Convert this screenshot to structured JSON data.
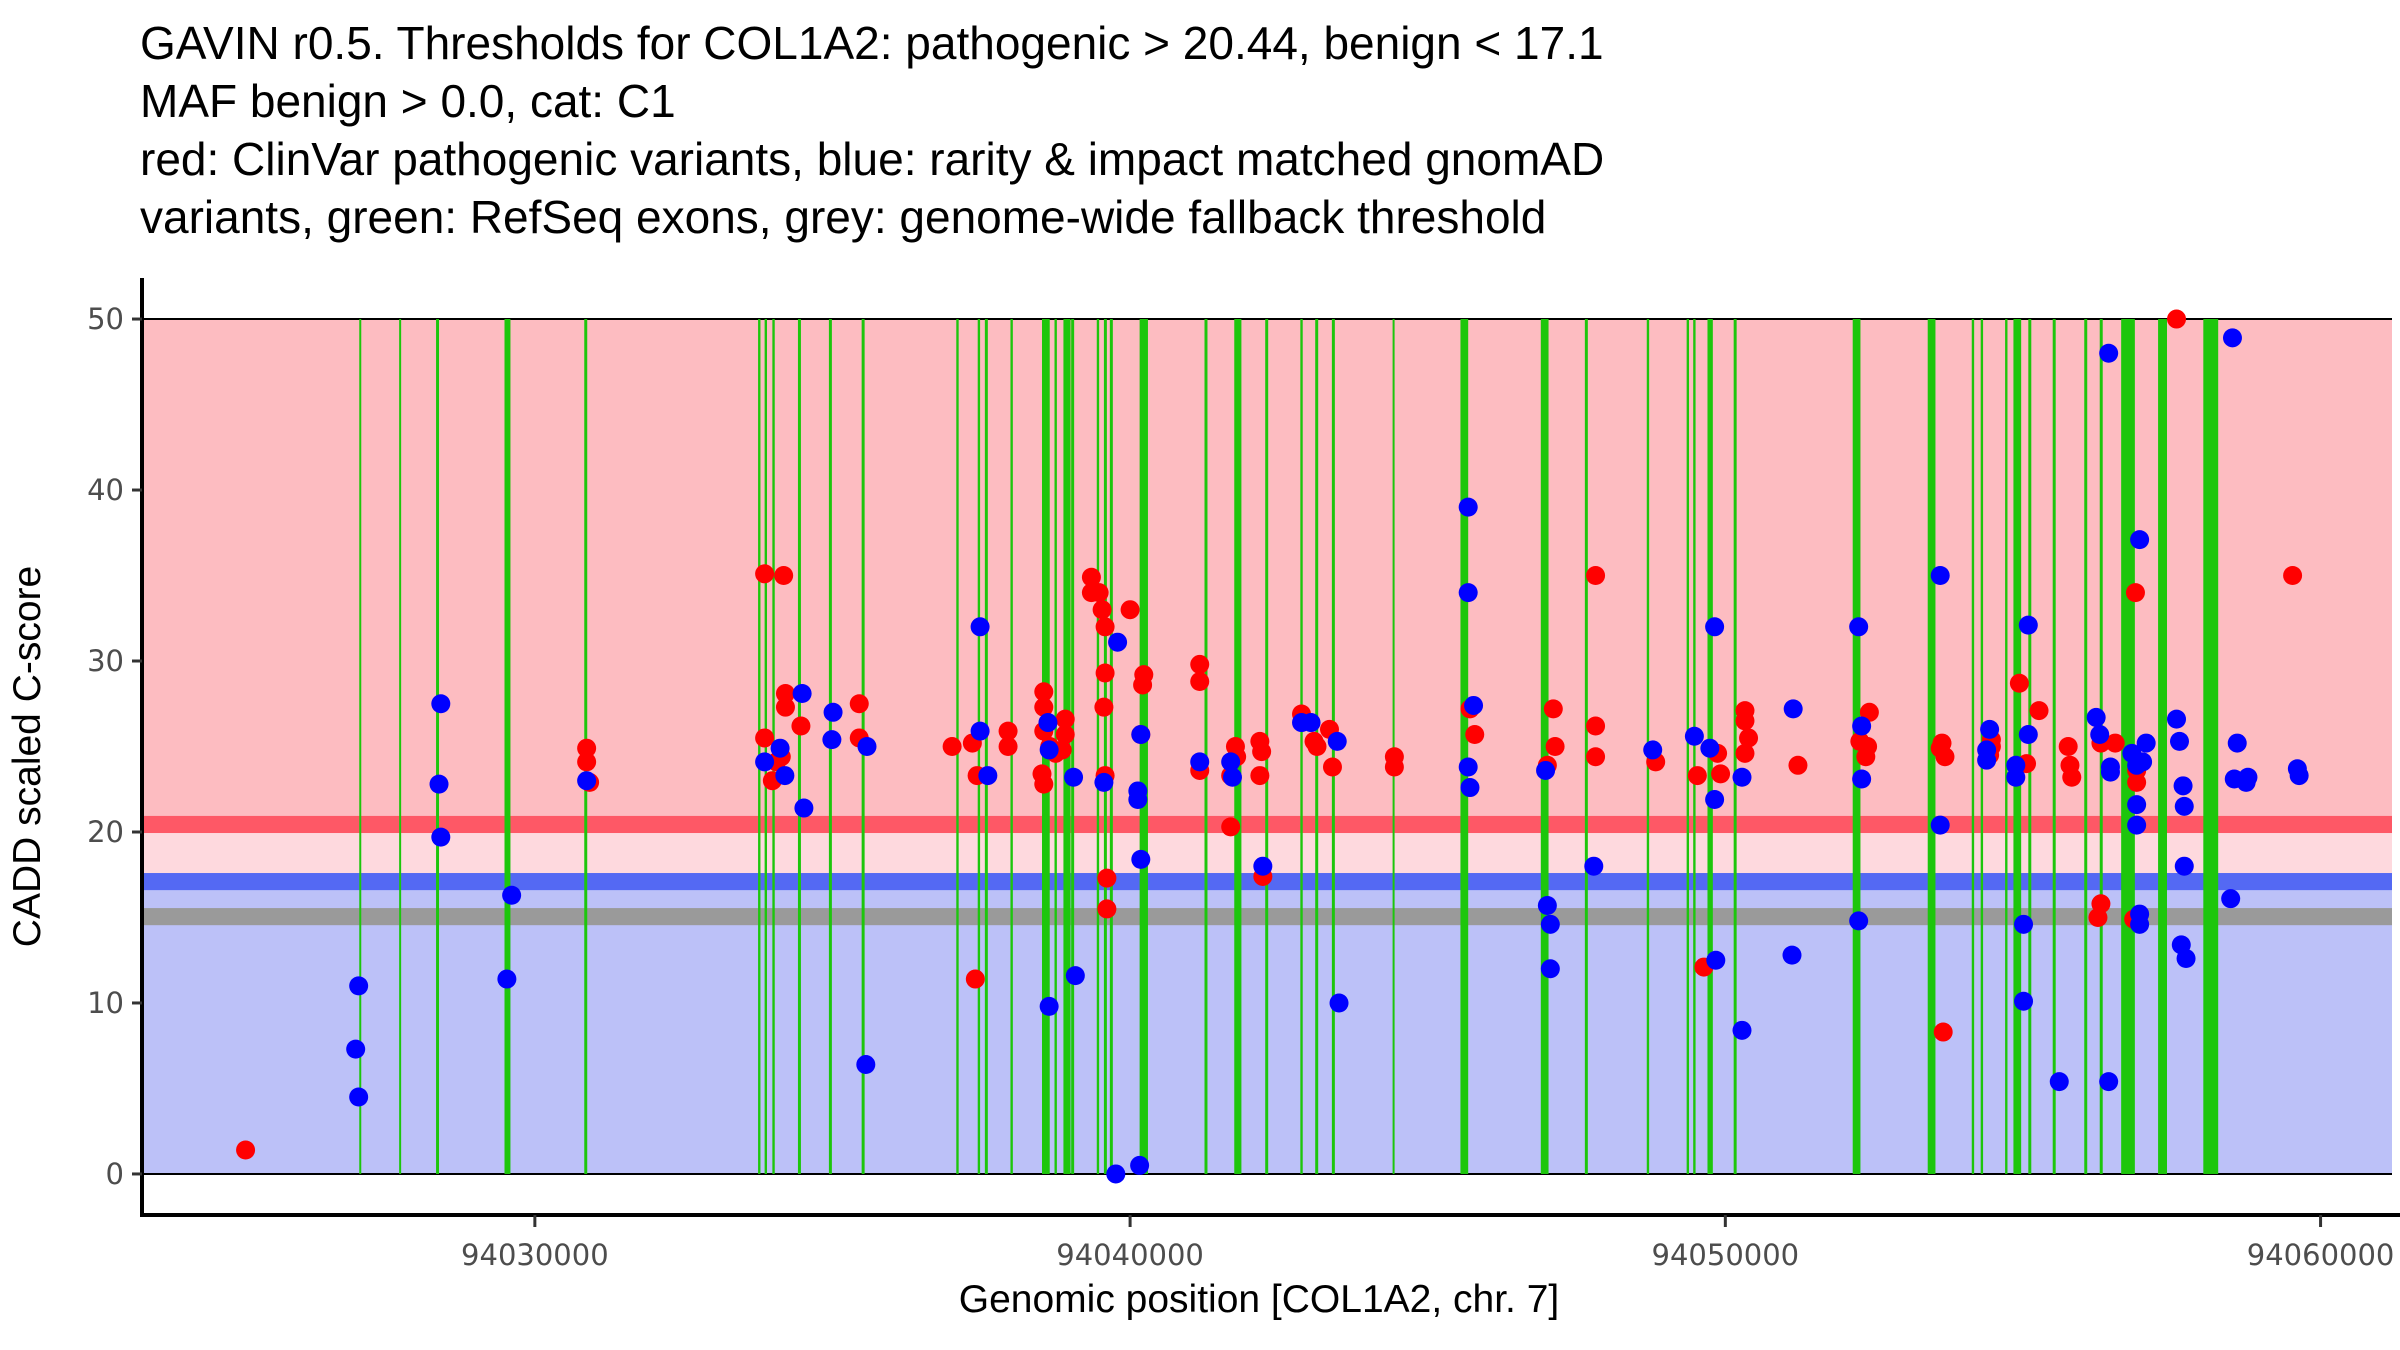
{
  "title_lines": [
    "GAVIN r0.5. Thresholds for COL1A2: pathogenic > 20.44, benign < 17.1",
    "MAF benign > 0.0, cat: C1",
    "red: ClinVar pathogenic variants, blue: rarity & impact matched gnomAD",
    "variants, green: RefSeq exons, grey: genome-wide fallback threshold"
  ],
  "colors": {
    "pathogenic_zone": "#FDBCC1",
    "intermediate_zone": "#FED9DE",
    "benign_zone": "#BCC1F8",
    "pathogenic_threshold": "#FE5866",
    "benign_threshold": "#5469F3",
    "fallback_threshold": "#9A9A9A",
    "exon": "#1DC60C",
    "clinvar_point": "#FF0000",
    "gnomad_point": "#0000FF"
  },
  "chart_data": {
    "type": "scatter",
    "title": "GAVIN r0.5. Thresholds for COL1A2: pathogenic > 20.44, benign < 17.1 / MAF benign > 0.0, cat: C1",
    "xlabel": "Genomic position [COL1A2, chr. 7]",
    "ylabel": "CADD scaled C-score",
    "xlim": [
      94023400,
      94061200
    ],
    "ylim": [
      -2.4,
      52.4
    ],
    "x_ticks": [
      94030000,
      94040000,
      94050000,
      94060000
    ],
    "x_tick_labels": [
      "94030000",
      "94040000",
      "94050000",
      "94060000"
    ],
    "y_ticks": [
      0,
      10,
      20,
      30,
      40,
      50
    ],
    "y_tick_labels": [
      "0",
      "10",
      "20",
      "30",
      "40",
      "50"
    ],
    "grid": false,
    "legend": "none (described in title)",
    "thresholds": {
      "pathogenic": 20.44,
      "benign": 17.1,
      "fallback": 15.05,
      "zone_top": 50,
      "zone_bottom": 0
    },
    "exons": [
      [
        94027050,
        94027070
      ],
      [
        94027720,
        94027740
      ],
      [
        94028340,
        94028390
      ],
      [
        94029490,
        94029590
      ],
      [
        94030830,
        94030880
      ],
      [
        94033750,
        94033790
      ],
      [
        94033860,
        94033900
      ],
      [
        94033990,
        94034030
      ],
      [
        94034420,
        94034470
      ],
      [
        94034940,
        94034990
      ],
      [
        94035490,
        94035540
      ],
      [
        94037080,
        94037120
      ],
      [
        94037440,
        94037480
      ],
      [
        94037560,
        94037610
      ],
      [
        94037990,
        94038030
      ],
      [
        94038520,
        94038650
      ],
      [
        94038730,
        94038770
      ],
      [
        94038880,
        94039000
      ],
      [
        94039010,
        94039060
      ],
      [
        94039440,
        94039480
      ],
      [
        94039560,
        94039610
      ],
      [
        94039660,
        94039710
      ],
      [
        94040160,
        94040260
      ],
      [
        94040250,
        94040300
      ],
      [
        94041250,
        94041300
      ],
      [
        94041750,
        94041870
      ],
      [
        94042270,
        94042320
      ],
      [
        94042860,
        94042900
      ],
      [
        94043110,
        94043160
      ],
      [
        94043390,
        94043440
      ],
      [
        94044410,
        94044440
      ],
      [
        94045550,
        94045680
      ],
      [
        94046900,
        94047030
      ],
      [
        94047640,
        94047690
      ],
      [
        94048680,
        94048720
      ],
      [
        94049350,
        94049390
      ],
      [
        94049460,
        94049500
      ],
      [
        94049700,
        94049790
      ],
      [
        94050140,
        94050190
      ],
      [
        94052140,
        94052270
      ],
      [
        94053400,
        94053530
      ],
      [
        94054140,
        94054180
      ],
      [
        94054290,
        94054330
      ],
      [
        94054700,
        94054740
      ],
      [
        94054840,
        94054970
      ],
      [
        94055090,
        94055140
      ],
      [
        94055500,
        94055550
      ],
      [
        94056030,
        94056080
      ],
      [
        94056290,
        94056340
      ],
      [
        94056650,
        94056880
      ],
      [
        94057270,
        94057420
      ],
      [
        94058030,
        94058280
      ]
    ],
    "series": [
      {
        "name": "ClinVar pathogenic variants",
        "color": "#FF0000",
        "points": [
          [
            94025140,
            1.4
          ],
          [
            94030870,
            24.9
          ],
          [
            94030870,
            24.1
          ],
          [
            94030920,
            22.9
          ],
          [
            94033860,
            35.1
          ],
          [
            94034180,
            35.0
          ],
          [
            94033860,
            25.5
          ],
          [
            94033990,
            23.0
          ],
          [
            94034060,
            24.1
          ],
          [
            94034140,
            24.4
          ],
          [
            94034210,
            28.1
          ],
          [
            94034210,
            27.3
          ],
          [
            94034470,
            26.2
          ],
          [
            94035450,
            27.5
          ],
          [
            94035450,
            25.5
          ],
          [
            94037010,
            25.0
          ],
          [
            94037350,
            25.2
          ],
          [
            94037430,
            23.3
          ],
          [
            94037400,
            11.4
          ],
          [
            94037950,
            25.9
          ],
          [
            94037950,
            25.0
          ],
          [
            94038550,
            28.2
          ],
          [
            94038550,
            27.3
          ],
          [
            94038550,
            25.9
          ],
          [
            94038520,
            23.4
          ],
          [
            94038550,
            22.8
          ],
          [
            94038650,
            25.0
          ],
          [
            94038750,
            24.6
          ],
          [
            94038910,
            26.6
          ],
          [
            94038910,
            25.7
          ],
          [
            94038860,
            24.8
          ],
          [
            94039350,
            34.9
          ],
          [
            94039350,
            34.0
          ],
          [
            94039480,
            34.0
          ],
          [
            94039530,
            33.0
          ],
          [
            94039580,
            32.0
          ],
          [
            94039580,
            29.3
          ],
          [
            94039560,
            27.3
          ],
          [
            94039580,
            23.3
          ],
          [
            94039610,
            17.3
          ],
          [
            94039610,
            15.5
          ],
          [
            94040000,
            33.0
          ],
          [
            94040180,
            25.7
          ],
          [
            94040230,
            29.2
          ],
          [
            94040210,
            28.6
          ],
          [
            94041170,
            29.8
          ],
          [
            94041170,
            28.8
          ],
          [
            94041170,
            23.6
          ],
          [
            94041690,
            20.3
          ],
          [
            94041770,
            25.0
          ],
          [
            94041790,
            24.4
          ],
          [
            94041690,
            23.3
          ],
          [
            94042180,
            25.3
          ],
          [
            94042210,
            24.7
          ],
          [
            94042180,
            23.3
          ],
          [
            94042230,
            17.4
          ],
          [
            94042880,
            26.9
          ],
          [
            94043090,
            25.3
          ],
          [
            94043140,
            25.0
          ],
          [
            94043350,
            26.0
          ],
          [
            94043400,
            23.8
          ],
          [
            94044440,
            24.4
          ],
          [
            94044440,
            23.8
          ],
          [
            94045710,
            27.2
          ],
          [
            94045790,
            25.7
          ],
          [
            94047010,
            23.9
          ],
          [
            94047110,
            27.2
          ],
          [
            94047140,
            25.0
          ],
          [
            94047820,
            35.0
          ],
          [
            94047820,
            26.2
          ],
          [
            94047820,
            24.4
          ],
          [
            94048830,
            24.1
          ],
          [
            94049530,
            23.3
          ],
          [
            94049640,
            12.1
          ],
          [
            94049870,
            24.6
          ],
          [
            94049920,
            23.4
          ],
          [
            94050330,
            27.1
          ],
          [
            94050330,
            26.5
          ],
          [
            94050390,
            25.5
          ],
          [
            94050330,
            24.6
          ],
          [
            94051220,
            23.9
          ],
          [
            94052260,
            25.3
          ],
          [
            94052390,
            25.0
          ],
          [
            94052360,
            24.4
          ],
          [
            94052420,
            27.0
          ],
          [
            94053640,
            25.2
          ],
          [
            94053610,
            24.9
          ],
          [
            94053690,
            24.4
          ],
          [
            94053660,
            8.3
          ],
          [
            94054470,
            25.4
          ],
          [
            94054470,
            25.0
          ],
          [
            94054440,
            24.5
          ],
          [
            94054940,
            28.7
          ],
          [
            94055060,
            24.0
          ],
          [
            94055270,
            27.1
          ],
          [
            94055760,
            25.0
          ],
          [
            94055790,
            23.9
          ],
          [
            94055820,
            23.2
          ],
          [
            94056310,
            25.2
          ],
          [
            94056310,
            15.8
          ],
          [
            94056260,
            15.0
          ],
          [
            94056550,
            25.2
          ],
          [
            94056890,
            34.0
          ],
          [
            94056910,
            23.6
          ],
          [
            94056910,
            22.9
          ],
          [
            94056860,
            14.9
          ],
          [
            94057580,
            50.0
          ],
          [
            94059530,
            35.0
          ]
        ]
      },
      {
        "name": "rarity & impact matched gnomAD variants",
        "color": "#0000FF",
        "points": [
          [
            94027040,
            11.0
          ],
          [
            94026990,
            7.3
          ],
          [
            94027040,
            4.5
          ],
          [
            94028420,
            27.5
          ],
          [
            94028390,
            22.8
          ],
          [
            94028420,
            19.7
          ],
          [
            94029610,
            16.3
          ],
          [
            94029530,
            11.4
          ],
          [
            94030870,
            23.0
          ],
          [
            94033860,
            24.1
          ],
          [
            94034120,
            24.9
          ],
          [
            94034200,
            23.3
          ],
          [
            94034490,
            28.1
          ],
          [
            94034520,
            21.4
          ],
          [
            94035010,
            27.0
          ],
          [
            94034990,
            25.4
          ],
          [
            94035580,
            25.0
          ],
          [
            94035560,
            6.4
          ],
          [
            94037480,
            32.0
          ],
          [
            94037480,
            25.9
          ],
          [
            94037610,
            23.3
          ],
          [
            94038620,
            26.4
          ],
          [
            94038640,
            24.8
          ],
          [
            94038640,
            9.8
          ],
          [
            94039050,
            23.2
          ],
          [
            94039080,
            11.6
          ],
          [
            94039560,
            22.9
          ],
          [
            94039790,
            31.1
          ],
          [
            94039760,
            0.0
          ],
          [
            94040180,
            25.7
          ],
          [
            94040130,
            22.4
          ],
          [
            94040130,
            21.9
          ],
          [
            94040180,
            18.4
          ],
          [
            94040160,
            0.5
          ],
          [
            94041170,
            24.1
          ],
          [
            94041720,
            23.2
          ],
          [
            94041690,
            24.1
          ],
          [
            94042230,
            18.0
          ],
          [
            94042880,
            26.4
          ],
          [
            94043040,
            26.4
          ],
          [
            94043510,
            10.0
          ],
          [
            94043480,
            25.3
          ],
          [
            94045680,
            39.0
          ],
          [
            94045680,
            34.0
          ],
          [
            94045680,
            23.8
          ],
          [
            94045710,
            22.6
          ],
          [
            94045770,
            27.4
          ],
          [
            94046980,
            23.6
          ],
          [
            94047010,
            15.7
          ],
          [
            94047060,
            14.6
          ],
          [
            94047060,
            12.0
          ],
          [
            94047790,
            18.0
          ],
          [
            94048780,
            24.8
          ],
          [
            94049480,
            25.6
          ],
          [
            94049740,
            24.9
          ],
          [
            94049820,
            32.0
          ],
          [
            94049820,
            21.9
          ],
          [
            94049840,
            12.5
          ],
          [
            94050280,
            8.4
          ],
          [
            94050280,
            23.2
          ],
          [
            94051140,
            27.2
          ],
          [
            94051120,
            12.8
          ],
          [
            94052240,
            32.0
          ],
          [
            94052290,
            26.2
          ],
          [
            94052290,
            23.1
          ],
          [
            94052240,
            14.8
          ],
          [
            94053610,
            35.0
          ],
          [
            94053610,
            20.4
          ],
          [
            94054390,
            24.2
          ],
          [
            94054390,
            24.8
          ],
          [
            94054440,
            26.0
          ],
          [
            94054880,
            23.9
          ],
          [
            94054880,
            23.2
          ],
          [
            94055010,
            14.6
          ],
          [
            94055010,
            10.1
          ],
          [
            94055090,
            32.1
          ],
          [
            94055090,
            25.7
          ],
          [
            94055610,
            5.4
          ],
          [
            94056230,
            26.7
          ],
          [
            94056290,
            25.7
          ],
          [
            94056440,
            48.0
          ],
          [
            94056470,
            23.8
          ],
          [
            94056470,
            23.5
          ],
          [
            94056440,
            5.4
          ],
          [
            94056830,
            24.6
          ],
          [
            94056910,
            23.9
          ],
          [
            94056960,
            37.1
          ],
          [
            94056910,
            21.6
          ],
          [
            94056910,
            20.4
          ],
          [
            94056960,
            15.2
          ],
          [
            94056960,
            14.6
          ],
          [
            94057070,
            25.2
          ],
          [
            94057010,
            24.1
          ],
          [
            94057580,
            26.6
          ],
          [
            94057630,
            25.3
          ],
          [
            94057690,
            22.7
          ],
          [
            94057660,
            13.4
          ],
          [
            94057740,
            12.6
          ],
          [
            94057710,
            18.0
          ],
          [
            94057710,
            21.5
          ],
          [
            94058520,
            48.9
          ],
          [
            94058600,
            25.2
          ],
          [
            94058490,
            16.1
          ],
          [
            94058550,
            23.1
          ],
          [
            94058750,
            22.9
          ],
          [
            94058780,
            23.2
          ],
          [
            94059610,
            23.7
          ],
          [
            94059640,
            23.3
          ]
        ]
      }
    ]
  }
}
